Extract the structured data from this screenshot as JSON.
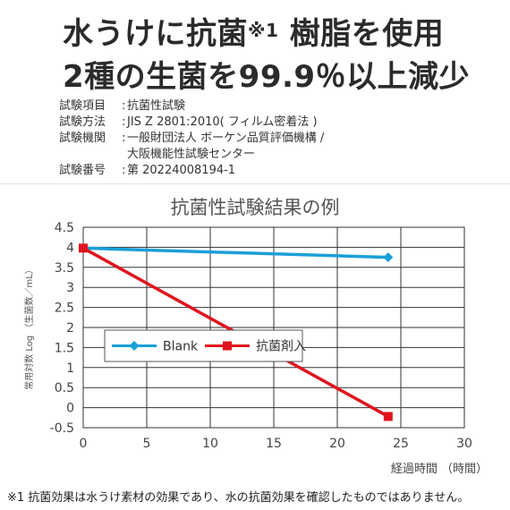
{
  "headline": {
    "line1_a": "水うけに抗菌",
    "line1_mark": "※1",
    "line1_b": "樹脂を使用",
    "line2": "2種の生菌を99.9％以上減少"
  },
  "info": [
    {
      "key": "試験項目",
      "value": "抗菌性試験"
    },
    {
      "key": "試験方法",
      "value": "JIS Z 2801:2010( フィルム密着法 )"
    },
    {
      "key": "試験機関",
      "value": "一般財団法人 ボーケン品質評価機構 /"
    },
    {
      "key": "",
      "value": "大阪機能性試験センター"
    },
    {
      "key": "試験番号",
      "value": "第 20224008194-1"
    }
  ],
  "chart_data": {
    "type": "line",
    "title": "抗菌性試験結果の例",
    "xlabel": "経過時間 （時間）",
    "ylabel": "常用対数 Log （生菌数／mL）",
    "xlim": [
      0,
      30
    ],
    "ylim": [
      -0.5,
      4.5
    ],
    "xticks": [
      0,
      5,
      10,
      15,
      20,
      25,
      30
    ],
    "yticks": [
      -0.5,
      0,
      0.5,
      1,
      1.5,
      2,
      2.5,
      3,
      3.5,
      4,
      4.5
    ],
    "grid": true,
    "legend_position": "lower-left",
    "series": [
      {
        "name": "Blank",
        "color": "#1a9fd9",
        "marker": "diamond",
        "x": [
          0,
          24
        ],
        "y": [
          3.98,
          3.75
        ]
      },
      {
        "name": "抗菌剤入",
        "color": "#e0141e",
        "marker": "square",
        "x": [
          0,
          24
        ],
        "y": [
          3.98,
          -0.22
        ]
      }
    ]
  },
  "footnote": "※1 抗菌効果は水うけ素材の効果であり、水の抗菌効果を確認したものではありません。"
}
